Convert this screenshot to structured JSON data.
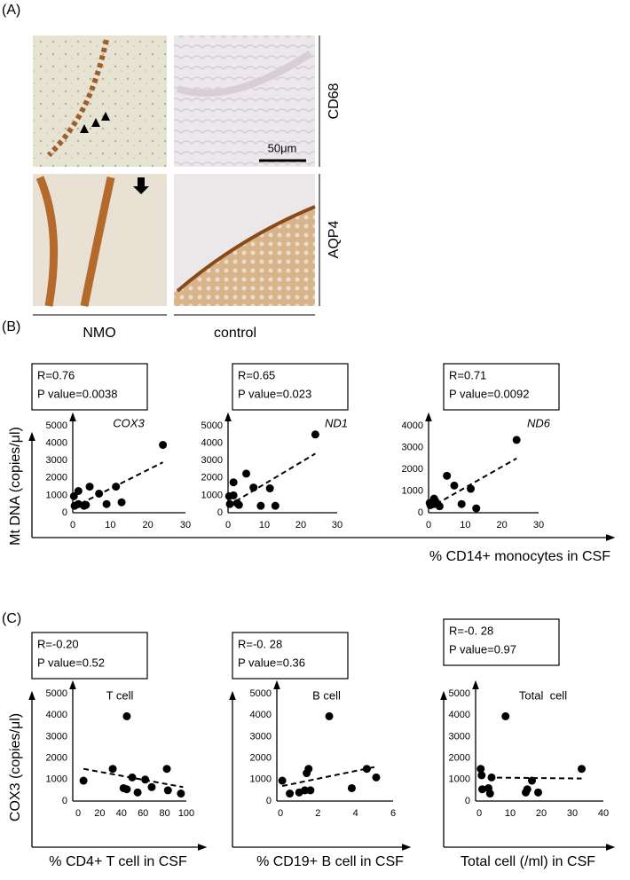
{
  "figure": {
    "panel_labels": [
      "(A)",
      "(B)",
      "(C)"
    ],
    "row_labels": [
      "CD68",
      "AQP4"
    ],
    "column_labels": [
      "NMO",
      "control"
    ],
    "scale_bar": "50μm",
    "panel_b": {
      "ylabel": "Mt DNA (copies/μl)",
      "xlabel": "% CD14+ monocytes in CSF"
    },
    "panel_c": {
      "ylabel": "COX3 (copies/μl)"
    }
  },
  "chart_data": [
    {
      "type": "scatter",
      "stats": [
        "R=0.76",
        "P value=0.0038"
      ],
      "label": "COX3",
      "x": [
        0.3,
        0.5,
        1.5,
        1.5,
        3,
        3.5,
        4.5,
        7,
        9,
        11.5,
        13,
        24
      ],
      "y": [
        950,
        400,
        1250,
        500,
        400,
        450,
        1500,
        1100,
        500,
        1500,
        600,
        3900
      ],
      "trend_x": [
        0,
        24
      ],
      "trend_y": [
        300,
        2900
      ],
      "xlim": [
        0,
        30
      ],
      "ylim": [
        0,
        5000
      ],
      "xticks": [
        0,
        10,
        20,
        30
      ],
      "yticks": [
        0,
        1000,
        2000,
        3000,
        4000,
        5000
      ]
    },
    {
      "type": "scatter",
      "stats": [
        "R=0.65",
        "P value=0.023"
      ],
      "label": "ND1",
      "x": [
        0.3,
        0.5,
        1.5,
        1.5,
        2.5,
        3,
        5,
        7,
        9,
        11.5,
        13,
        24
      ],
      "y": [
        950,
        500,
        1000,
        1750,
        550,
        450,
        2250,
        1450,
        400,
        1400,
        400,
        4500
      ],
      "trend_x": [
        0,
        24
      ],
      "trend_y": [
        400,
        3400
      ],
      "xlim": [
        0,
        30
      ],
      "ylim": [
        0,
        5000
      ],
      "xticks": [
        0,
        10,
        20,
        30
      ],
      "yticks": [
        0,
        1000,
        2000,
        3000,
        4000,
        5000
      ]
    },
    {
      "type": "scatter",
      "stats": [
        "R=0.71",
        "P value=0.0092"
      ],
      "label": "ND6",
      "x": [
        0.3,
        0.5,
        1.5,
        1.5,
        2,
        3,
        5,
        7,
        9,
        11.5,
        13,
        24
      ],
      "y": [
        450,
        350,
        650,
        400,
        500,
        300,
        1700,
        1250,
        400,
        1100,
        200,
        3350
      ],
      "trend_x": [
        0,
        24
      ],
      "trend_y": [
        200,
        2500
      ],
      "xlim": [
        0,
        30
      ],
      "ylim": [
        0,
        4000
      ],
      "xticks": [
        0,
        10,
        20,
        30
      ],
      "yticks": [
        0,
        1000,
        2000,
        3000,
        4000
      ]
    },
    {
      "type": "scatter",
      "stats": [
        "R=-0.20",
        "P value=0.52"
      ],
      "label": "T cell",
      "xlabel": "% CD4+ T cell in CSF",
      "x": [
        5,
        32,
        42,
        45,
        45,
        50,
        55,
        62,
        68,
        82,
        83,
        95
      ],
      "y": [
        950,
        1500,
        600,
        3950,
        550,
        1100,
        400,
        1000,
        650,
        1500,
        500,
        350
      ],
      "trend_x": [
        5,
        97
      ],
      "trend_y": [
        1500,
        650
      ],
      "xlim": [
        0,
        100
      ],
      "ylim": [
        0,
        5000
      ],
      "xticks": [
        0,
        20,
        40,
        60,
        80,
        100
      ],
      "yticks": [
        0,
        1000,
        2000,
        3000,
        4000,
        5000
      ]
    },
    {
      "type": "scatter",
      "stats": [
        "R=-0. 28",
        "P value=0.36"
      ],
      "label": "B cell",
      "xlabel": "% CD19+ B cell in CSF",
      "x": [
        0.1,
        0.5,
        1,
        1.3,
        1.4,
        1.5,
        1.6,
        2.6,
        3.8,
        4.6,
        5.1
      ],
      "y": [
        950,
        350,
        400,
        500,
        1300,
        1500,
        500,
        3950,
        600,
        1500,
        1100
      ],
      "trend_x": [
        0.1,
        5.1
      ],
      "trend_y": [
        700,
        1600
      ],
      "xlim": [
        0,
        6
      ],
      "ylim": [
        0,
        5000
      ],
      "xticks": [
        0,
        2,
        4,
        6
      ],
      "yticks": [
        0,
        1000,
        2000,
        3000,
        4000,
        5000
      ]
    },
    {
      "type": "scatter",
      "stats": [
        "R=-0. 28",
        "P value=0.97"
      ],
      "label": "Total  cell",
      "xlabel": "Total cell (/ml) in CSF",
      "x": [
        0.5,
        0.8,
        1,
        3,
        3.5,
        4,
        8.5,
        15,
        15.5,
        17,
        19,
        33
      ],
      "y": [
        1500,
        1200,
        550,
        600,
        350,
        1100,
        3950,
        400,
        550,
        950,
        400,
        1500
      ],
      "trend_x": [
        0,
        33
      ],
      "trend_y": [
        1100,
        1050
      ],
      "xlim": [
        0,
        40
      ],
      "ylim": [
        0,
        5000
      ],
      "xticks": [
        0,
        10,
        20,
        30,
        40
      ],
      "yticks": [
        0,
        1000,
        2000,
        3000,
        4000,
        5000
      ]
    }
  ]
}
